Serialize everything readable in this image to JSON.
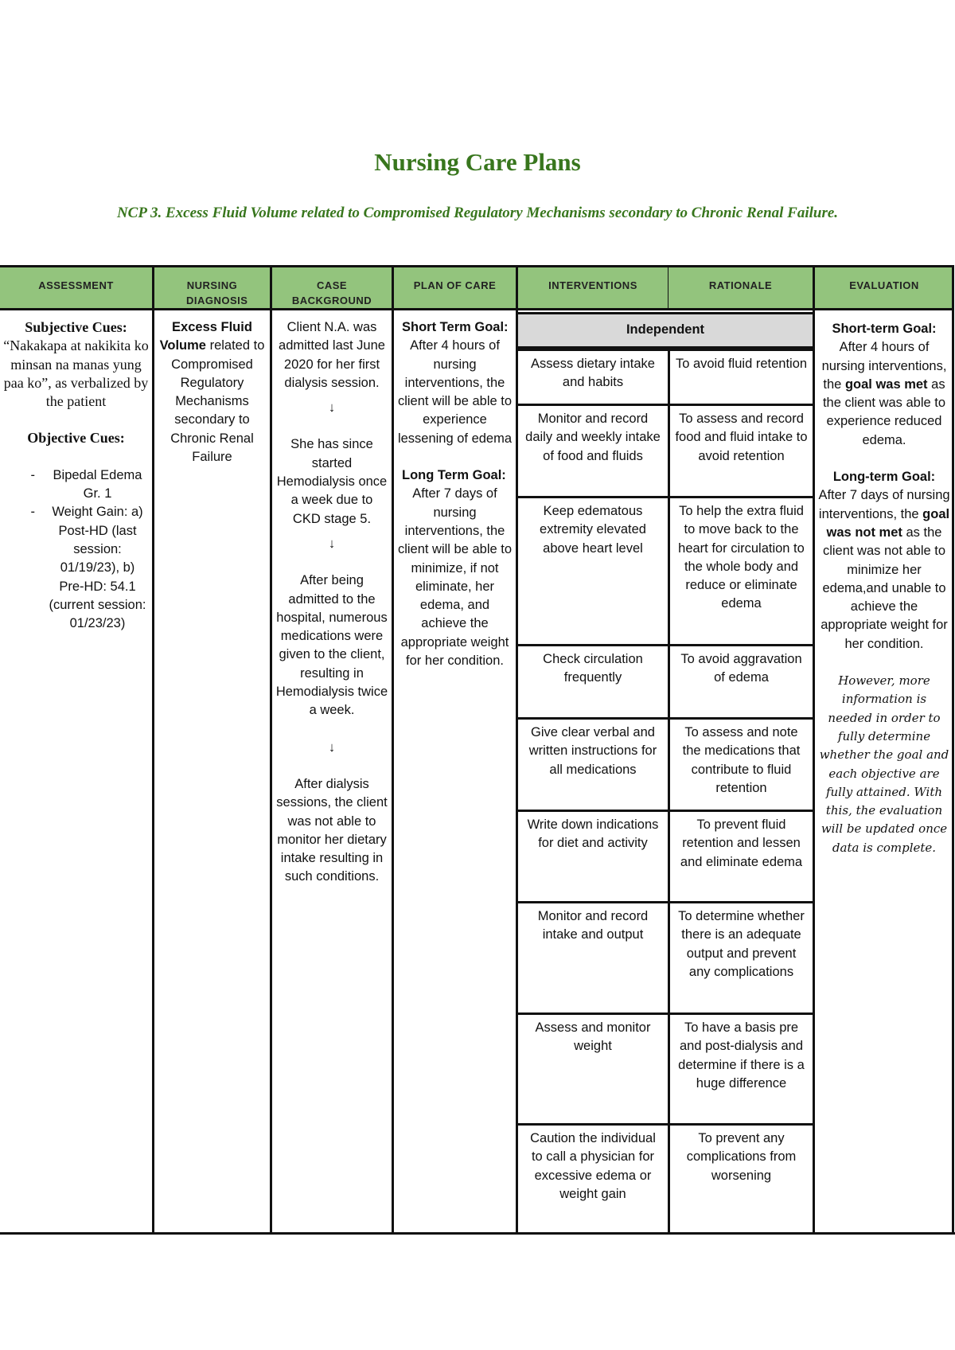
{
  "page": {
    "title": "Nursing Care Plans",
    "subtitle": "NCP 3. Excess Fluid Volume related to Compromised Regulatory Mechanisms secondary to Chronic Renal Failure.",
    "header_color": "#93c47d",
    "title_color": "#38761d"
  },
  "table": {
    "headers": [
      "ASSESSMENT",
      "NURSING DIAGNOSIS",
      "CASE BACKGROUND",
      "PLAN OF CARE",
      "INTERVENTIONS",
      "RATIONALE",
      "EVALUATION"
    ],
    "assessment": {
      "subjective_label": "Subjective Cues:",
      "subjective_text": "“Nakakapa at nakikita ko minsan na manas yung paa ko”, as verbalized by the patient",
      "objective_label": "Objective Cues:",
      "objective_items": [
        "Bipedal Edema Gr. 1",
        "Weight Gain: a) Post-HD (last session: 01/19/23), b) Pre-HD: 54.1 (current session: 01/23/23)"
      ]
    },
    "diagnosis": {
      "bold": "Excess Fluid Volume",
      "rest": " related to Compromised Regulatory Mechanisms secondary to Chronic Renal Failure"
    },
    "case_background": {
      "paragraphs": [
        "Client N.A. was admitted last June 2020 for her first dialysis session.",
        "She has since started Hemodialysis once a week due to CKD stage 5.",
        "After being admitted to the hospital, numerous medications were given to the client, resulting in Hemodialysis twice a week.",
        "After dialysis sessions, the client was not able to monitor her dietary intake resulting in such conditions."
      ],
      "arrow": "↓"
    },
    "plan_of_care": {
      "short_label": "Short Term Goal:",
      "short_text": "After 4 hours of nursing interventions, the client will be able to experience lessening of edema",
      "long_label": "Long Term Goal:",
      "long_text": "After 7 days of nursing interventions, the client will be able to minimize, if not eliminate, her edema, and achieve the appropriate weight for her condition."
    },
    "independent_label": "Independent",
    "interventions": [
      {
        "intervention": "Assess dietary intake and habits",
        "rationale": "To avoid fluid retention"
      },
      {
        "intervention": "Monitor and record daily and weekly intake of food and fluids",
        "rationale": "To assess and record food and fluid intake to avoid retention"
      },
      {
        "intervention": "Keep edematous extremity elevated above heart level",
        "rationale": "To help the extra fluid to move back to the heart for circulation to the whole body and reduce or eliminate edema"
      },
      {
        "intervention": "Check circulation frequently",
        "rationale": "To avoid aggravation of edema"
      },
      {
        "intervention": "Give clear verbal and written instructions for all medications",
        "rationale": "To assess and note the medications that contribute to fluid retention"
      },
      {
        "intervention": "Write down indications for diet and activity",
        "rationale": "To prevent fluid retention and lessen and eliminate edema"
      },
      {
        "intervention": "Monitor and record intake and output",
        "rationale": "To determine whether there is an adequate output and prevent any complications"
      },
      {
        "intervention": "Assess and monitor weight",
        "rationale": "To have a basis pre and post-dialysis and determine if there is a huge difference"
      },
      {
        "intervention": "Caution the individual to call a physician for excessive edema or weight gain",
        "rationale": "To prevent any complications from worsening"
      }
    ],
    "evaluation": {
      "short_label": "Short-term Goal:",
      "short_pre": "After 4 hours of nursing interventions, the ",
      "short_bold": "goal was met",
      "short_post": " as the client was able to experience reduced edema.",
      "long_label": "Long-term Goal:",
      "long_pre": "After 7 days of nursing interventions, the ",
      "long_bold": "goal was not met",
      "long_post": " as the client was not able to minimize her edema,and unable to achieve the appropriate weight for her condition.",
      "note": "However, more information is needed in order to fully determine whether the goal and each objective are fully attained. With this, the evaluation will be updated once data is complete."
    }
  }
}
